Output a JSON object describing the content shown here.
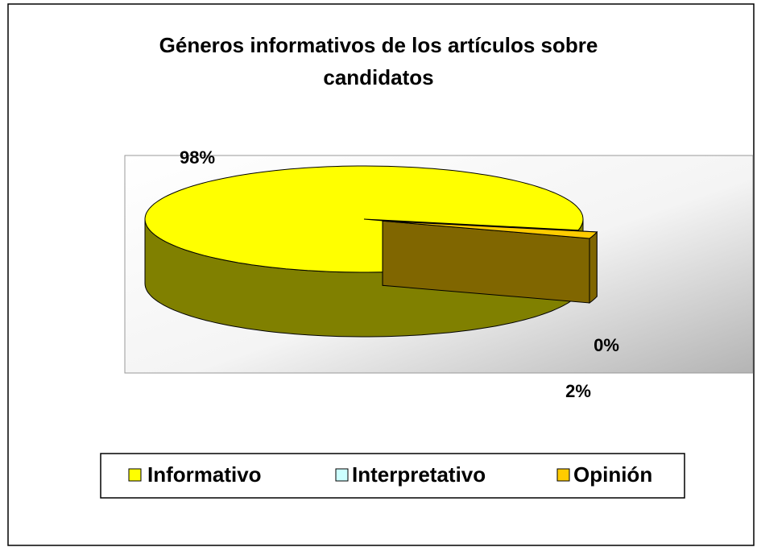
{
  "chart_data": {
    "type": "pie",
    "title": "Géneros informativos de los artículos sobre candidatos",
    "categories": [
      "Informativo",
      "Interpretativo",
      "Opinión"
    ],
    "values": [
      98,
      0,
      2
    ],
    "value_labels": [
      "98%",
      "0%",
      "2%"
    ],
    "colors": [
      "#ffff00",
      "#ccffff",
      "#ffcc00"
    ],
    "legend": "bottom"
  }
}
